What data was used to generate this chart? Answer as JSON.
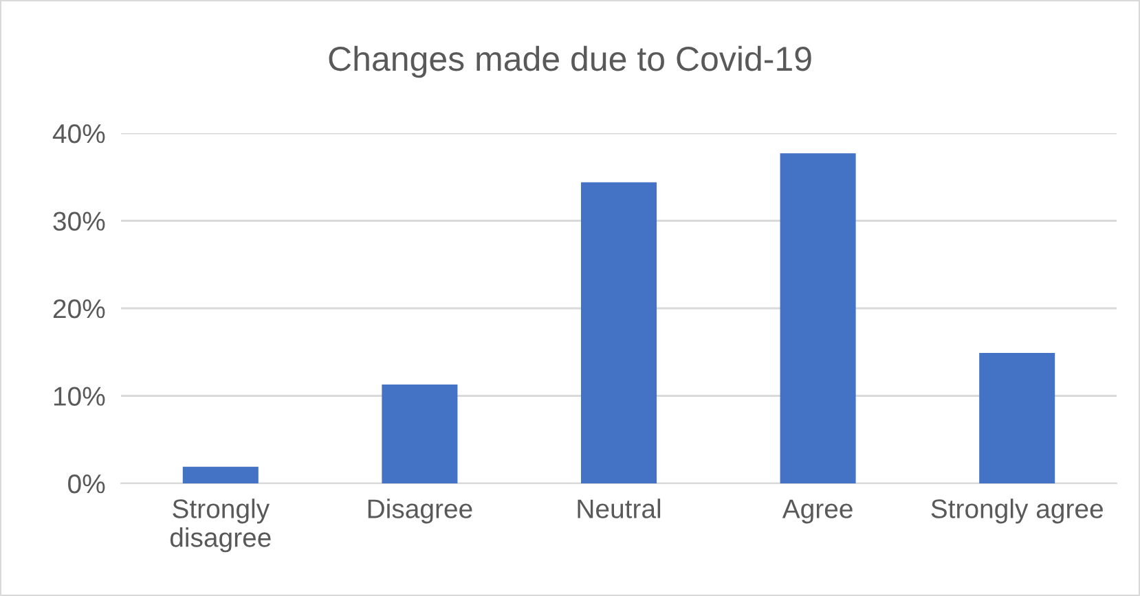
{
  "chart_data": {
    "type": "bar",
    "title": "Changes made due to Covid-19",
    "categories": [
      "Strongly disagree",
      "Disagree",
      "Neutral",
      "Agree",
      "Strongly agree"
    ],
    "values": [
      1.9,
      11.3,
      34.4,
      37.7,
      14.9
    ],
    "color": "#4472c4",
    "ylim": [
      0,
      40
    ],
    "yticks": [
      {
        "value": 0,
        "label": "0%"
      },
      {
        "value": 10,
        "label": "10%"
      },
      {
        "value": 20,
        "label": "20%"
      },
      {
        "value": 30,
        "label": "30%"
      },
      {
        "value": 40,
        "label": "40%"
      }
    ],
    "grid": "y",
    "legend": false
  }
}
